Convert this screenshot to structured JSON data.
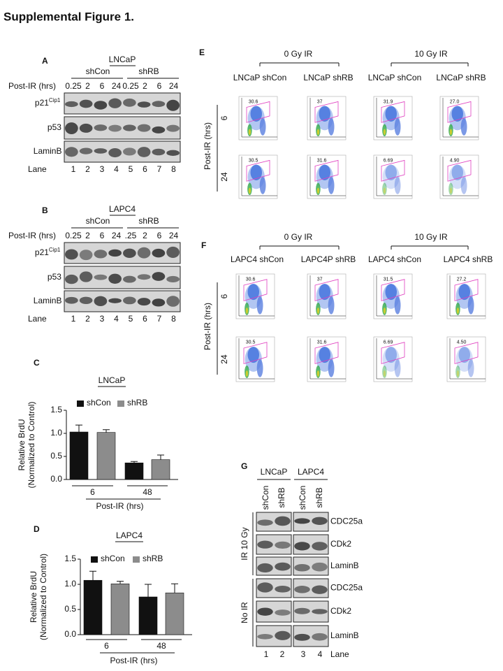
{
  "title": "Supplemental Figure 1.",
  "panel_a": {
    "label": "A",
    "cell": "LNCaP",
    "groups": [
      "shCon",
      "shRB"
    ],
    "row_label": "Post-IR (hrs)",
    "times": [
      "0.25",
      "2",
      "6",
      "24",
      "0.25",
      "2",
      "6",
      "24"
    ],
    "blots": [
      {
        "name": "p21",
        "sup": "Cip1"
      },
      {
        "name": "p53"
      },
      {
        "name": "LaminB"
      }
    ],
    "lane_label": "Lane",
    "lanes": [
      "1",
      "2",
      "3",
      "4",
      "5",
      "6",
      "7",
      "8"
    ]
  },
  "panel_b": {
    "label": "B",
    "cell": "LAPC4",
    "groups": [
      "shCon",
      "shRB"
    ],
    "row_label": "Post-IR (hrs)",
    "times": [
      "0.25",
      "2",
      "6",
      "24",
      ".25",
      "2",
      "6",
      "24"
    ],
    "blots": [
      {
        "name": "p21",
        "sup": "Cip1"
      },
      {
        "name": "p53"
      },
      {
        "name": "LaminB"
      }
    ],
    "lane_label": "Lane",
    "lanes": [
      "1",
      "2",
      "3",
      "4",
      "5",
      "6",
      "7",
      "8"
    ]
  },
  "panel_e": {
    "label": "E",
    "doses": [
      "0 Gy IR",
      "10 Gy IR"
    ],
    "columns": [
      "LNCaP shCon",
      "LNCaP shRB",
      "LNCaP shCon",
      "LNCaP shRB"
    ],
    "axis_label": "Post-IR (hrs)",
    "rows": [
      "6",
      "24"
    ],
    "gates": [
      [
        "30.6",
        "37",
        "31.9",
        "27.0"
      ],
      [
        "30.5",
        "31.6",
        "6.69",
        "4.90"
      ]
    ]
  },
  "panel_f": {
    "label": "F",
    "doses": [
      "0 Gy IR",
      "10 Gy IR"
    ],
    "columns": [
      "LAPC4 shCon",
      "LAPC4P shRB",
      "LAPC4 shCon",
      "LAPC4 shRB"
    ],
    "axis_label": "Post-IR (hrs)",
    "rows": [
      "6",
      "24"
    ],
    "gates": [
      [
        "30.6",
        "37",
        "31.5",
        "27.2"
      ],
      [
        "30.5",
        "31.6",
        "6.69",
        "4.50"
      ]
    ]
  },
  "panel_g": {
    "label": "G",
    "cells": [
      "LNCaP",
      "LAPC4"
    ],
    "lane_groups": [
      "shCon",
      "shRB",
      "shCon",
      "shRB"
    ],
    "conditions": [
      {
        "name": "IR 10 Gy",
        "blots": [
          "CDC25a",
          "CDk2",
          "LaminB"
        ]
      },
      {
        "name": "No IR",
        "blots": [
          "CDC25a",
          "CDk2",
          "LaminB"
        ]
      }
    ],
    "lane_label": "Lane",
    "lanes": [
      "1",
      "2",
      "3",
      "4"
    ]
  },
  "chart_data": [
    {
      "type": "bar",
      "panel": "C",
      "title": "LNCaP",
      "y_label": [
        "Relative BrdU",
        "(Normalized to Control)"
      ],
      "x_label": "Post-IR (hrs)",
      "categories": [
        "6",
        "48"
      ],
      "series": [
        {
          "name": "shCon",
          "color": "#111111",
          "values": [
            1.03,
            0.36
          ],
          "errors": [
            0.15,
            0.03
          ]
        },
        {
          "name": "shRB",
          "color": "#8c8c8c",
          "values": [
            1.02,
            0.43
          ],
          "errors": [
            0.06,
            0.1
          ]
        }
      ],
      "ylim": [
        0,
        1.5
      ],
      "yticks": [
        {
          "value": 0,
          "label": "0.0"
        },
        {
          "value": 0.5,
          "label": "0.5"
        },
        {
          "value": 1,
          "label": "1.0"
        },
        {
          "value": 1.5,
          "label": "1.5"
        }
      ]
    },
    {
      "type": "bar",
      "panel": "D",
      "title": "LAPC4",
      "y_label": [
        "Relative BrdU",
        "(Normalized to Control)"
      ],
      "x_label": "Post-IR (hrs)",
      "categories": [
        "6",
        "48"
      ],
      "series": [
        {
          "name": "shCon",
          "color": "#111111",
          "values": [
            1.08,
            0.75
          ],
          "errors": [
            0.18,
            0.25
          ]
        },
        {
          "name": "shRB",
          "color": "#8c8c8c",
          "values": [
            1.01,
            0.83
          ],
          "errors": [
            0.05,
            0.18
          ]
        }
      ],
      "ylim": [
        0,
        1.5
      ],
      "yticks": [
        {
          "value": 0,
          "label": "0.0"
        },
        {
          "value": 0.5,
          "label": "0.5"
        },
        {
          "value": 1,
          "label": "1.0"
        },
        {
          "value": 1.5,
          "label": "1.5"
        }
      ]
    }
  ]
}
